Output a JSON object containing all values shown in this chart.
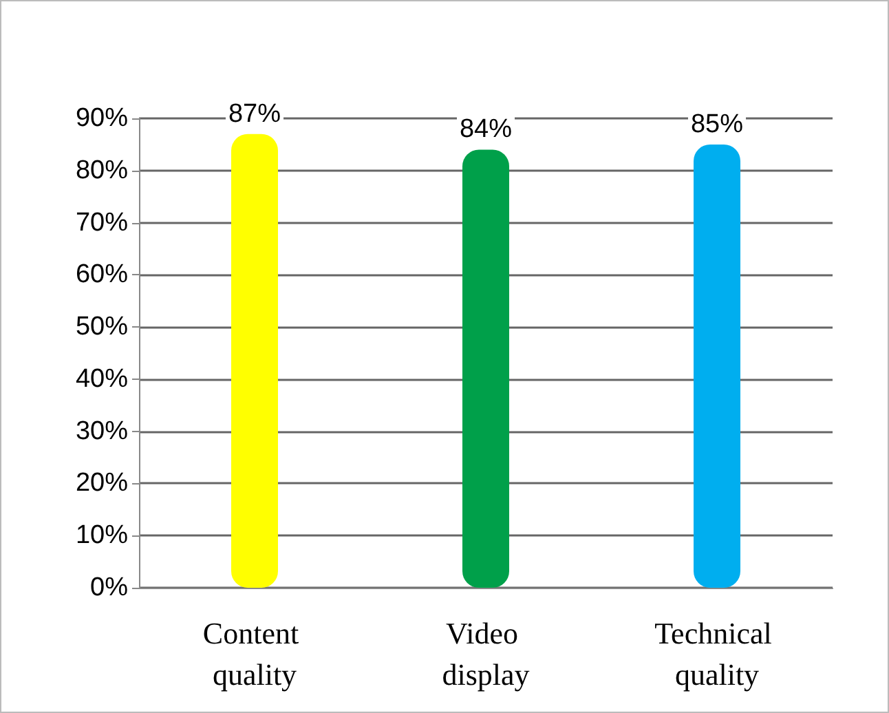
{
  "chart_data": {
    "type": "bar",
    "categories": [
      "Content quality",
      "Video display",
      "Technical quality"
    ],
    "values": [
      87,
      84,
      85
    ],
    "colors": [
      "#ffff00",
      "#00a04a",
      "#00aeef"
    ],
    "value_labels": [
      "87%",
      "84%",
      "85%"
    ],
    "ylim": [
      0,
      90
    ],
    "yticks": [
      {
        "value": 0,
        "label": "0%"
      },
      {
        "value": 10,
        "label": "10%"
      },
      {
        "value": 20,
        "label": "20%"
      },
      {
        "value": 30,
        "label": "30%"
      },
      {
        "value": 40,
        "label": "40%"
      },
      {
        "value": 50,
        "label": "50%"
      },
      {
        "value": 60,
        "label": "60%"
      },
      {
        "value": 70,
        "label": "70%"
      },
      {
        "value": 80,
        "label": "80%"
      },
      {
        "value": 90,
        "label": "90%"
      }
    ],
    "grid": "y"
  }
}
